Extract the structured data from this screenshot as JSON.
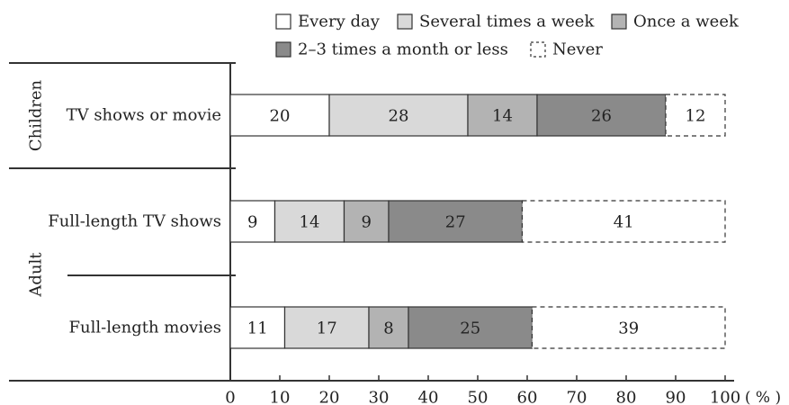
{
  "chart_data": {
    "type": "bar",
    "stacked": true,
    "orientation": "horizontal",
    "unit": "%",
    "xlim": [
      0,
      100
    ],
    "xticks": [
      0,
      10,
      20,
      30,
      40,
      50,
      60,
      70,
      80,
      90,
      100
    ],
    "groups": [
      {
        "label": "Children",
        "categories": [
          "TV shows or movie"
        ]
      },
      {
        "label": "Adult",
        "categories": [
          "Full-length TV shows",
          "Full-length movies"
        ]
      }
    ],
    "categories": [
      "TV shows or movie",
      "Full-length TV shows",
      "Full-length movies"
    ],
    "series": [
      {
        "name": "Every day",
        "values": [
          20,
          9,
          11
        ],
        "color": "#ffffff"
      },
      {
        "name": "Several times a week",
        "values": [
          28,
          14,
          17
        ],
        "color": "#d9d9d9"
      },
      {
        "name": "Once a week",
        "values": [
          14,
          9,
          8
        ],
        "color": "#b3b3b3"
      },
      {
        "name": "2–3 times a month or less",
        "values": [
          26,
          27,
          25
        ],
        "color": "#8a8a8a"
      },
      {
        "name": "Never",
        "values": [
          12,
          41,
          39
        ],
        "color": "#ffffff",
        "dashed": true
      }
    ],
    "legend_position": "top-right"
  }
}
